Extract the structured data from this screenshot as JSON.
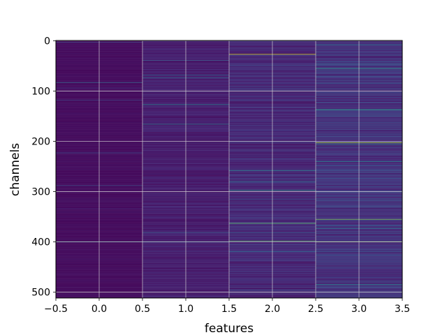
{
  "chart_data": {
    "type": "heatmap",
    "title": "",
    "xlabel": "features",
    "ylabel": "channels",
    "xlim": [
      -0.5,
      3.5
    ],
    "ylim": [
      511.5,
      -0.5
    ],
    "grid": true,
    "colormap": "viridis",
    "rows": 512,
    "columns": 4,
    "x_ticks": [
      -0.5,
      0.0,
      0.5,
      1.0,
      1.5,
      2.0,
      2.5,
      3.0,
      3.5
    ],
    "x_tick_labels": [
      "−0.5",
      "0.0",
      "0.5",
      "1.0",
      "1.5",
      "2.0",
      "2.5",
      "3.0",
      "3.5"
    ],
    "y_ticks": [
      0,
      100,
      200,
      300,
      400,
      500
    ],
    "y_tick_labels": [
      "0",
      "100",
      "200",
      "300",
      "400",
      "500"
    ],
    "column_base_level": [
      0.04,
      0.1,
      0.14,
      0.18
    ],
    "highlighted_cells": [
      {
        "feature": 0,
        "channel": 83,
        "value": 0.35
      },
      {
        "feature": 0,
        "channel": 400,
        "value": 0.55
      },
      {
        "feature": 1,
        "channel": 127,
        "value": 0.45
      },
      {
        "feature": 1,
        "channel": 166,
        "value": 0.4
      },
      {
        "feature": 1,
        "channel": 400,
        "value": 0.5
      },
      {
        "feature": 2,
        "channel": 27,
        "value": 0.95
      },
      {
        "feature": 2,
        "channel": 258,
        "value": 0.45
      },
      {
        "feature": 2,
        "channel": 297,
        "value": 0.55
      },
      {
        "feature": 2,
        "channel": 363,
        "value": 0.75
      },
      {
        "feature": 2,
        "channel": 398,
        "value": 0.7
      },
      {
        "feature": 3,
        "channel": 8,
        "value": 0.4
      },
      {
        "feature": 3,
        "channel": 55,
        "value": 0.55
      },
      {
        "feature": 3,
        "channel": 137,
        "value": 0.6
      },
      {
        "feature": 3,
        "channel": 203,
        "value": 0.9
      },
      {
        "feature": 3,
        "channel": 240,
        "value": 0.45
      },
      {
        "feature": 3,
        "channel": 355,
        "value": 0.8
      },
      {
        "feature": 3,
        "channel": 400,
        "value": 0.9
      },
      {
        "feature": 3,
        "channel": 485,
        "value": 0.5
      }
    ]
  }
}
